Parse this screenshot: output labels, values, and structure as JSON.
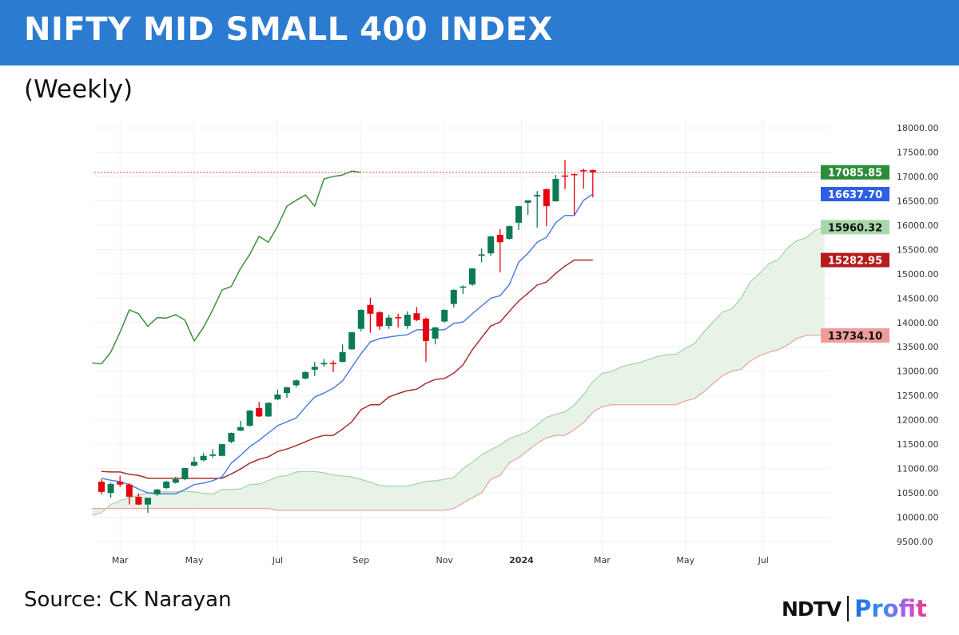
{
  "footer": {
    "source": "Source: CK Narayan"
  },
  "logo": {
    "brand": "NDTV",
    "product": "Profit"
  },
  "chart_data": {
    "type": "candlestick",
    "title": "NIFTY MID SMALL 400 INDEX",
    "subtitle": "(Weekly)",
    "xlabel": "",
    "ylabel": "",
    "ylim": [
      9500,
      18000
    ],
    "y_ticks": [
      9500,
      10000,
      10500,
      11000,
      11500,
      12000,
      12500,
      13000,
      13500,
      14000,
      14500,
      15000,
      15500,
      16000,
      16500,
      17000,
      17500,
      18000
    ],
    "y_tick_labels": [
      "9500.00",
      "10000.00",
      "10500.00",
      "11000.00",
      "11500.00",
      "12000.00",
      "12500.00",
      "13000.00",
      "13500.00",
      "14000.00",
      "14500.00",
      "15000.00",
      "15500.00",
      "16000.00",
      "16500.00",
      "17000.00",
      "17500.00",
      "18000.00"
    ],
    "x_unit": "week",
    "x_ticks": [
      {
        "label": "Mar",
        "week": 2
      },
      {
        "label": "May",
        "week": 10
      },
      {
        "label": "Jul",
        "week": 19
      },
      {
        "label": "Sep",
        "week": 28
      },
      {
        "label": "Nov",
        "week": 37
      },
      {
        "label": "2024",
        "week": 45.3,
        "bold": true
      },
      {
        "label": "Mar",
        "week": 54
      },
      {
        "label": "May",
        "week": 63
      },
      {
        "label": "Jul",
        "week": 71.4
      }
    ],
    "grid": true,
    "colors": {
      "up": "#0b7a55",
      "down": "#e8020e",
      "tenkan": "#4f7fe6",
      "kijun": "#a83030",
      "chikou": "#3f8f3f",
      "span_a": "#a9d5a9",
      "span_b": "#eaa6a6",
      "cloud": "#e4f2e4",
      "last_price_line": "#e05050"
    },
    "candles_ohlc": [
      [
        10730,
        10780,
        10470,
        10520
      ],
      [
        10500,
        10710,
        10400,
        10680
      ],
      [
        10730,
        10850,
        10620,
        10670
      ],
      [
        10670,
        10700,
        10260,
        10420
      ],
      [
        10420,
        10490,
        10250,
        10260
      ],
      [
        10260,
        10400,
        10090,
        10400
      ],
      [
        10470,
        10580,
        10440,
        10570
      ],
      [
        10600,
        10750,
        10580,
        10730
      ],
      [
        10710,
        10830,
        10690,
        10780
      ],
      [
        10780,
        11010,
        10760,
        11010
      ],
      [
        11060,
        11240,
        11040,
        11140
      ],
      [
        11170,
        11320,
        11150,
        11260
      ],
      [
        11260,
        11400,
        11220,
        11290
      ],
      [
        11260,
        11510,
        11250,
        11500
      ],
      [
        11550,
        11740,
        11520,
        11730
      ],
      [
        11780,
        11980,
        11770,
        11850
      ],
      [
        11880,
        12200,
        11860,
        12190
      ],
      [
        12240,
        12370,
        12060,
        12070
      ],
      [
        12070,
        12360,
        12060,
        12350
      ],
      [
        12420,
        12620,
        12400,
        12520
      ],
      [
        12550,
        12680,
        12450,
        12670
      ],
      [
        12710,
        12830,
        12670,
        12810
      ],
      [
        12850,
        13000,
        12830,
        12980
      ],
      [
        13030,
        13190,
        12900,
        13090
      ],
      [
        13140,
        13250,
        13090,
        13170
      ],
      [
        13170,
        13220,
        12980,
        13150
      ],
      [
        13190,
        13550,
        13180,
        13390
      ],
      [
        13450,
        13810,
        13440,
        13800
      ],
      [
        13870,
        14270,
        13820,
        14260
      ],
      [
        14360,
        14510,
        13790,
        14180
      ],
      [
        14210,
        14230,
        13850,
        13920
      ],
      [
        13930,
        14160,
        13870,
        14100
      ],
      [
        14110,
        14180,
        13900,
        14090
      ],
      [
        13930,
        14230,
        13870,
        14160
      ],
      [
        14190,
        14320,
        14030,
        14050
      ],
      [
        14080,
        14100,
        13190,
        13620
      ],
      [
        13670,
        13910,
        13550,
        13900
      ],
      [
        14020,
        14270,
        14000,
        14260
      ],
      [
        14380,
        14680,
        14310,
        14670
      ],
      [
        14720,
        14760,
        14590,
        14740
      ],
      [
        14780,
        15120,
        14750,
        15110
      ],
      [
        15370,
        15520,
        15240,
        15400
      ],
      [
        15420,
        15780,
        15370,
        15770
      ],
      [
        15800,
        15920,
        15030,
        15650
      ],
      [
        15720,
        15990,
        15700,
        15980
      ],
      [
        16050,
        16400,
        15900,
        16390
      ],
      [
        16460,
        16510,
        16210,
        16510
      ],
      [
        16590,
        16700,
        15950,
        16620
      ],
      [
        16740,
        16750,
        15980,
        16390
      ],
      [
        16490,
        17030,
        16480,
        16950
      ],
      [
        17020,
        17340,
        16740,
        17000
      ],
      [
        17050,
        17060,
        16210,
        17030
      ],
      [
        17130,
        17160,
        16750,
        17110
      ],
      [
        17130,
        17140,
        16570,
        17085.85
      ]
    ],
    "tenkan_sen": [
      10800,
      10760,
      10730,
      10670,
      10580,
      10500,
      10480,
      10480,
      10480,
      10570,
      10670,
      10700,
      10750,
      10830,
      11110,
      11270,
      11450,
      11580,
      11730,
      11880,
      11960,
      12040,
      12260,
      12470,
      12550,
      12650,
      12800,
      13080,
      13360,
      13600,
      13670,
      13700,
      13730,
      13750,
      13850,
      13850,
      13850,
      13850,
      13980,
      14010,
      14180,
      14340,
      14500,
      14550,
      14780,
      15240,
      15420,
      15650,
      15750,
      16050,
      16200,
      16200,
      16510,
      16637.7
    ],
    "kijun_sen": [
      10940,
      10930,
      10930,
      10880,
      10860,
      10800,
      10800,
      10800,
      10800,
      10800,
      10800,
      10800,
      10800,
      10800,
      10890,
      10990,
      11110,
      11190,
      11240,
      11350,
      11400,
      11470,
      11550,
      11630,
      11680,
      11680,
      11810,
      11960,
      12210,
      12310,
      12310,
      12470,
      12540,
      12600,
      12630,
      12750,
      12830,
      12850,
      12960,
      13130,
      13440,
      13690,
      13930,
      14010,
      14230,
      14440,
      14600,
      14770,
      14830,
      15010,
      15160,
      15282.95,
      15282.95,
      15282.95
    ],
    "chikou_span_start_week": -1,
    "chikou_span": [
      13170,
      13150,
      13390,
      13800,
      14260,
      14180,
      13920,
      14100,
      14090,
      14160,
      14050,
      13620,
      13900,
      14260,
      14670,
      14740,
      15110,
      15400,
      15770,
      15650,
      15980,
      16390,
      16510,
      16620,
      16390,
      16950,
      17000,
      17030,
      17110,
      17085.85
    ],
    "cloud_start_week": -1,
    "senkou_span_a": [
      10040,
      10090,
      10260,
      10340,
      10400,
      10450,
      10500,
      10520,
      10520,
      10520,
      10530,
      10520,
      10490,
      10470,
      10570,
      10570,
      10580,
      10670,
      10680,
      10750,
      10830,
      10860,
      10930,
      10940,
      10940,
      10910,
      10870,
      10845,
      10830,
      10775,
      10720,
      10650,
      10640,
      10640,
      10640,
      10685,
      10735,
      10750,
      10775,
      10815,
      11000,
      11130,
      11280,
      11385,
      11485,
      11615,
      11680,
      11755,
      11905,
      12050,
      12115,
      12165,
      12305,
      12520,
      12785,
      12955,
      12990,
      13085,
      13135,
      13175,
      13240,
      13300,
      13340,
      13350,
      13470,
      13570,
      13810,
      14015,
      14215,
      14280,
      14505,
      14840,
      15010,
      15210,
      15290,
      15530,
      15680,
      15741.5,
      15896.5,
      15960.32
    ],
    "senkou_span_b": [
      10180,
      10180,
      10180,
      10180,
      10180,
      10180,
      10180,
      10180,
      10180,
      10180,
      10180,
      10180,
      10180,
      10180,
      10180,
      10180,
      10180,
      10180,
      10180,
      10180,
      10140,
      10140,
      10140,
      10140,
      10140,
      10140,
      10140,
      10140,
      10140,
      10140,
      10140,
      10140,
      10140,
      10140,
      10140,
      10140,
      10140,
      10140,
      10140,
      10180,
      10290,
      10400,
      10500,
      10780,
      10860,
      11120,
      11220,
      11370,
      11520,
      11630,
      11680,
      11680,
      11800,
      11940,
      12160,
      12270,
      12310,
      12310,
      12310,
      12310,
      12310,
      12310,
      12310,
      12310,
      12390,
      12440,
      12580,
      12750,
      12910,
      13000,
      13040,
      13210,
      13320,
      13390,
      13440,
      13540,
      13670,
      13734.1,
      13734.1,
      13734.1
    ],
    "last_price_line": 17085.85,
    "price_labels": [
      {
        "series": "close",
        "text": "17085.85",
        "value": 17085.85,
        "bg": "#2e8b3a",
        "fg": "#ffffff"
      },
      {
        "series": "tenkan",
        "text": "16637.70",
        "value": 16637.7,
        "bg": "#2c5fe6",
        "fg": "#ffffff"
      },
      {
        "series": "span_a",
        "text": "15960.32",
        "value": 15960.32,
        "bg": "#a8d8aa",
        "fg": "#111111"
      },
      {
        "series": "kijun",
        "text": "15282.95",
        "value": 15282.95,
        "bg": "#b51c1c",
        "fg": "#ffffff"
      },
      {
        "series": "span_b",
        "text": "13734.10",
        "value": 13734.1,
        "bg": "#ef9c9c",
        "fg": "#111111"
      }
    ]
  }
}
